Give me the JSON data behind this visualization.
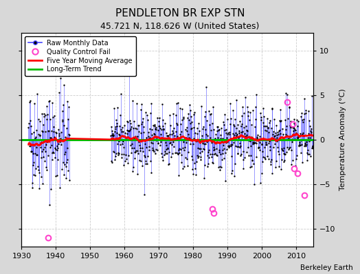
{
  "title": "PENDLETON BR EXP STN",
  "subtitle": "45.721 N, 118.626 W (United States)",
  "ylabel": "Temperature Anomaly (°C)",
  "watermark": "Berkeley Earth",
  "xlim": [
    1930,
    2015
  ],
  "ylim": [
    -12,
    12
  ],
  "yticks": [
    -10,
    -5,
    0,
    5,
    10
  ],
  "xticks": [
    1930,
    1940,
    1950,
    1960,
    1970,
    1980,
    1990,
    2000,
    2010
  ],
  "bg_color": "#d8d8d8",
  "plot_bg_color": "#ffffff",
  "grid_color": "#cccccc",
  "raw_line_color": "#4444ff",
  "raw_dot_color": "#000000",
  "moving_avg_color": "#ff0000",
  "trend_color": "#00bb00",
  "qc_fail_color": "#ff44cc",
  "seed": 42,
  "start_year": 1932,
  "gap_start": 1944,
  "gap_end": 1956,
  "qc_fail_points": [
    {
      "year": 1937.75,
      "value": -11.0
    },
    {
      "year": 2007.5,
      "value": 4.2
    },
    {
      "year": 2009.0,
      "value": 1.8
    },
    {
      "year": 2009.5,
      "value": -3.2
    },
    {
      "year": 2010.5,
      "value": -3.8
    },
    {
      "year": 2012.5,
      "value": -6.2
    },
    {
      "year": 1985.5,
      "value": -7.8
    },
    {
      "year": 1986.0,
      "value": -8.2
    }
  ]
}
